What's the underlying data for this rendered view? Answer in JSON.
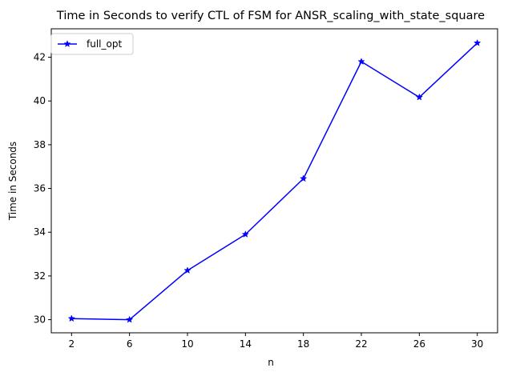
{
  "chart_data": {
    "type": "line",
    "title": "Time in Seconds to verify CTL of FSM for ANSR_scaling_with_state_square",
    "xlabel": "n",
    "ylabel": "Time in Seconds",
    "x": [
      2,
      6,
      10,
      14,
      18,
      22,
      26,
      30
    ],
    "xticks": [
      "2",
      "6",
      "10",
      "14",
      "18",
      "22",
      "26",
      "30"
    ],
    "yticks": [
      "30",
      "32",
      "34",
      "36",
      "38",
      "40",
      "42"
    ],
    "xlim": [
      0.6,
      31.4
    ],
    "ylim": [
      29.4,
      43.3
    ],
    "grid": false,
    "legend_position": "top-left",
    "series": [
      {
        "name": "full_opt",
        "color": "#0000ff",
        "marker": "star",
        "values": [
          30.05,
          30.0,
          32.25,
          33.9,
          36.45,
          41.8,
          40.17,
          42.65
        ]
      }
    ]
  }
}
